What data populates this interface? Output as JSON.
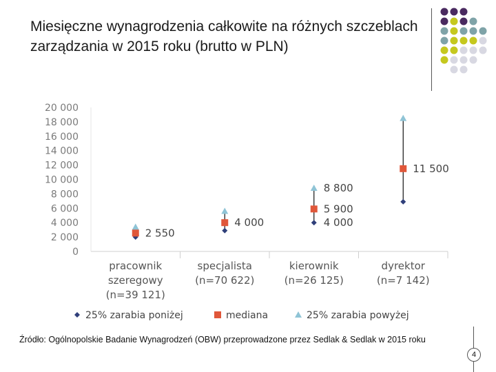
{
  "title": "Miesięczne wynagrodzenia całkowite na różnych szczeblach zarządzania w 2015 roku (brutto w PLN)",
  "source": "Źródło: Ogólnopolskie Badanie Wynagrodzeń (OBW) przeprowadzone przez Sedlak & Sedlak w 2015 roku",
  "page_number": "4",
  "colors": {
    "low": "#2f3f7a",
    "median": "#e0573a",
    "high": "#8fc4d6",
    "grid": "#e6e6e6",
    "tick_text": "#7a7a7a",
    "label_text": "#555555"
  },
  "chart_data": {
    "type": "scatter",
    "title": "",
    "xlabel": "",
    "ylabel": "",
    "ylim": [
      0,
      20000
    ],
    "y_ticks": [
      "0",
      "2 000",
      "4 000",
      "6 000",
      "8 000",
      "10 000",
      "12 000",
      "14 000",
      "16 000",
      "18 000",
      "20 000"
    ],
    "y_tick_values": [
      0,
      2000,
      4000,
      6000,
      8000,
      10000,
      12000,
      14000,
      16000,
      18000,
      20000
    ],
    "grid": "vertical separators only",
    "legend_position": "bottom",
    "categories": [
      [
        "pracownik",
        "szeregowy",
        "(n=39 121)"
      ],
      [
        "specjalista",
        "(n=70 622)"
      ],
      [
        "kierownik",
        "(n=26 125)"
      ],
      [
        "dyrektor",
        "(n=7 142)"
      ]
    ],
    "series": [
      {
        "name": "25% zarabia poniżej",
        "values": [
          2000,
          2900,
          4000,
          6900
        ]
      },
      {
        "name": "mediana",
        "values": [
          2550,
          4000,
          5900,
          11500
        ]
      },
      {
        "name": "25% zarabia powyżej",
        "values": [
          3400,
          5600,
          8800,
          18500
        ]
      }
    ],
    "data_labels": [
      [
        "2 550"
      ],
      [
        "4 000"
      ],
      [
        "8 800",
        "5 900",
        "4 000"
      ],
      [
        "11 500"
      ]
    ]
  }
}
